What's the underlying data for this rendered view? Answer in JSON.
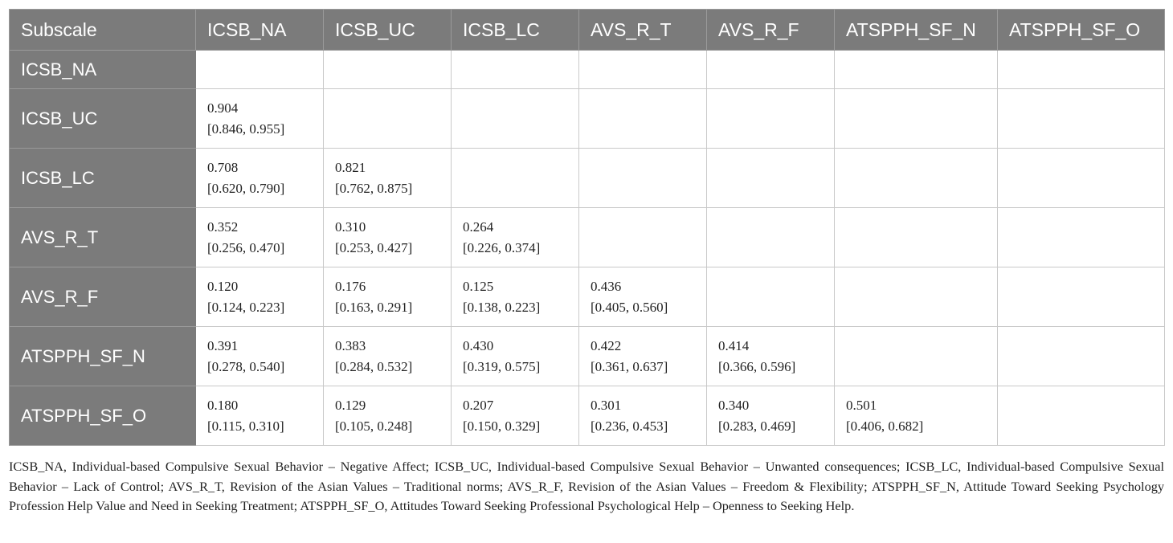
{
  "table": {
    "headers": [
      "Subscale",
      "ICSB_NA",
      "ICSB_UC",
      "ICSB_LC",
      "AVS_R_T",
      "AVS_R_F",
      "ATSPPH_SF_N",
      "ATSPPH_SF_O"
    ],
    "rows": [
      {
        "label": "ICSB_NA",
        "cells": [
          {
            "value": "",
            "ci": ""
          },
          {
            "value": "",
            "ci": ""
          },
          {
            "value": "",
            "ci": ""
          },
          {
            "value": "",
            "ci": ""
          },
          {
            "value": "",
            "ci": ""
          },
          {
            "value": "",
            "ci": ""
          },
          {
            "value": "",
            "ci": ""
          }
        ]
      },
      {
        "label": "ICSB_UC",
        "cells": [
          {
            "value": "0.904",
            "ci": "[0.846, 0.955]"
          },
          {
            "value": "",
            "ci": ""
          },
          {
            "value": "",
            "ci": ""
          },
          {
            "value": "",
            "ci": ""
          },
          {
            "value": "",
            "ci": ""
          },
          {
            "value": "",
            "ci": ""
          },
          {
            "value": "",
            "ci": ""
          }
        ]
      },
      {
        "label": "ICSB_LC",
        "cells": [
          {
            "value": "0.708",
            "ci": "[0.620, 0.790]"
          },
          {
            "value": "0.821",
            "ci": "[0.762, 0.875]"
          },
          {
            "value": "",
            "ci": ""
          },
          {
            "value": "",
            "ci": ""
          },
          {
            "value": "",
            "ci": ""
          },
          {
            "value": "",
            "ci": ""
          },
          {
            "value": "",
            "ci": ""
          }
        ]
      },
      {
        "label": "AVS_R_T",
        "cells": [
          {
            "value": "0.352",
            "ci": "[0.256, 0.470]"
          },
          {
            "value": "0.310",
            "ci": "[0.253, 0.427]"
          },
          {
            "value": "0.264",
            "ci": "[0.226, 0.374]"
          },
          {
            "value": "",
            "ci": ""
          },
          {
            "value": "",
            "ci": ""
          },
          {
            "value": "",
            "ci": ""
          },
          {
            "value": "",
            "ci": ""
          }
        ]
      },
      {
        "label": "AVS_R_F",
        "cells": [
          {
            "value": "0.120",
            "ci": "[0.124, 0.223]"
          },
          {
            "value": "0.176",
            "ci": "[0.163, 0.291]"
          },
          {
            "value": "0.125",
            "ci": "[0.138, 0.223]"
          },
          {
            "value": "0.436",
            "ci": "[0.405, 0.560]"
          },
          {
            "value": "",
            "ci": ""
          },
          {
            "value": "",
            "ci": ""
          },
          {
            "value": "",
            "ci": ""
          }
        ]
      },
      {
        "label": "ATSPPH_SF_N",
        "cells": [
          {
            "value": "0.391",
            "ci": "[0.278, 0.540]"
          },
          {
            "value": "0.383",
            "ci": "[0.284, 0.532]"
          },
          {
            "value": "0.430",
            "ci": "[0.319, 0.575]"
          },
          {
            "value": "0.422",
            "ci": "[0.361, 0.637]"
          },
          {
            "value": "0.414",
            "ci": "[0.366, 0.596]"
          },
          {
            "value": "",
            "ci": ""
          },
          {
            "value": "",
            "ci": ""
          }
        ]
      },
      {
        "label": "ATSPPH_SF_O",
        "cells": [
          {
            "value": "0.180",
            "ci": "[0.115, 0.310]"
          },
          {
            "value": "0.129",
            "ci": "[0.105, 0.248]"
          },
          {
            "value": "0.207",
            "ci": "[0.150, 0.329]"
          },
          {
            "value": "0.301",
            "ci": "[0.236, 0.453]"
          },
          {
            "value": "0.340",
            "ci": "[0.283, 0.469]"
          },
          {
            "value": "0.501",
            "ci": "[0.406, 0.682]"
          },
          {
            "value": "",
            "ci": ""
          }
        ]
      }
    ]
  },
  "footnote": "ICSB_NA, Individual-based Compulsive Sexual Behavior – Negative Affect; ICSB_UC, Individual-based Compulsive Sexual Behavior – Unwanted consequences; ICSB_LC, Individual-based Compulsive Sexual Behavior – Lack of Control; AVS_R_T, Revision of the Asian Values – Traditional norms; AVS_R_F, Revision of the Asian Values – Freedom & Flexibility; ATSPPH_SF_N, Attitude Toward Seeking Psychology Profession Help Value and Need in Seeking Treatment; ATSPPH_SF_O, Attitudes Toward Seeking Professional Psychological Help – Openness to Seeking Help.",
  "colors": {
    "header_bg": "#7b7b7b",
    "header_text": "#ffffff",
    "border": "#c9c9c9"
  }
}
